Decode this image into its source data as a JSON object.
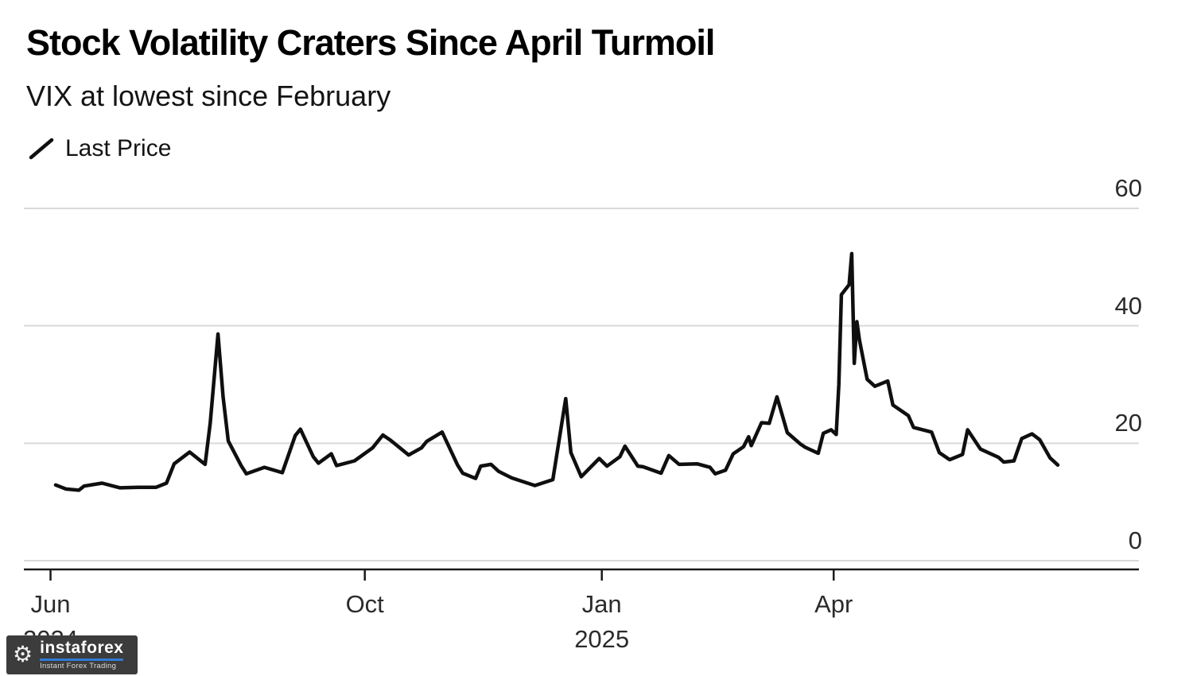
{
  "watermark": {
    "brand": "instaforex",
    "tagline": "Instant Forex Trading",
    "background_color": "#3c3c3c",
    "accent_color": "#2e7cd6"
  },
  "chart_data": {
    "type": "line",
    "title": "Stock Volatility Craters Since April Turmoil",
    "subtitle": "VIX at lowest since February",
    "xlabel": "",
    "ylabel": "",
    "ylim": [
      0,
      60
    ],
    "y_ticks": [
      0,
      20,
      40,
      60
    ],
    "grid": true,
    "grid_color": "#d9d9d9",
    "axis_color": "#1a1a1a",
    "legend_position": "top-left",
    "x_ticks": [
      {
        "date": "2024-06-01",
        "label": "Jun",
        "sublabel": "2024"
      },
      {
        "date": "2024-10-01",
        "label": "Oct",
        "sublabel": ""
      },
      {
        "date": "2025-01-01",
        "label": "Jan",
        "sublabel": "2025"
      },
      {
        "date": "2025-04-01",
        "label": "Apr",
        "sublabel": ""
      }
    ],
    "series": [
      {
        "name": "Last Price",
        "color": "#0f0f0f",
        "points": [
          [
            "2024-06-03",
            12.9
          ],
          [
            "2024-06-07",
            12.2
          ],
          [
            "2024-06-12",
            12.0
          ],
          [
            "2024-06-14",
            12.7
          ],
          [
            "2024-06-21",
            13.2
          ],
          [
            "2024-06-28",
            12.4
          ],
          [
            "2024-07-05",
            12.5
          ],
          [
            "2024-07-12",
            12.5
          ],
          [
            "2024-07-16",
            13.2
          ],
          [
            "2024-07-19",
            16.5
          ],
          [
            "2024-07-25",
            18.5
          ],
          [
            "2024-07-31",
            16.4
          ],
          [
            "2024-08-02",
            23.4
          ],
          [
            "2024-08-05",
            38.6
          ],
          [
            "2024-08-07",
            27.9
          ],
          [
            "2024-08-09",
            20.4
          ],
          [
            "2024-08-14",
            16.2
          ],
          [
            "2024-08-16",
            14.8
          ],
          [
            "2024-08-23",
            15.9
          ],
          [
            "2024-08-30",
            15.0
          ],
          [
            "2024-09-04",
            21.3
          ],
          [
            "2024-09-06",
            22.4
          ],
          [
            "2024-09-11",
            17.7
          ],
          [
            "2024-09-13",
            16.6
          ],
          [
            "2024-09-18",
            18.2
          ],
          [
            "2024-09-20",
            16.2
          ],
          [
            "2024-09-27",
            17.0
          ],
          [
            "2024-10-04",
            19.2
          ],
          [
            "2024-10-08",
            21.4
          ],
          [
            "2024-10-11",
            20.5
          ],
          [
            "2024-10-18",
            18.0
          ],
          [
            "2024-10-23",
            19.2
          ],
          [
            "2024-10-25",
            20.3
          ],
          [
            "2024-10-31",
            21.9
          ],
          [
            "2024-11-06",
            16.3
          ],
          [
            "2024-11-08",
            14.9
          ],
          [
            "2024-11-13",
            14.0
          ],
          [
            "2024-11-15",
            16.1
          ],
          [
            "2024-11-19",
            16.4
          ],
          [
            "2024-11-22",
            15.2
          ],
          [
            "2024-11-27",
            14.1
          ],
          [
            "2024-12-06",
            12.8
          ],
          [
            "2024-12-13",
            13.8
          ],
          [
            "2024-12-18",
            27.6
          ],
          [
            "2024-12-20",
            18.4
          ],
          [
            "2024-12-24",
            14.3
          ],
          [
            "2024-12-31",
            17.4
          ],
          [
            "2025-01-03",
            16.1
          ],
          [
            "2025-01-08",
            17.7
          ],
          [
            "2025-01-10",
            19.5
          ],
          [
            "2025-01-15",
            16.1
          ],
          [
            "2025-01-17",
            16.0
          ],
          [
            "2025-01-24",
            14.9
          ],
          [
            "2025-01-27",
            17.9
          ],
          [
            "2025-01-31",
            16.4
          ],
          [
            "2025-02-07",
            16.5
          ],
          [
            "2025-02-12",
            15.9
          ],
          [
            "2025-02-14",
            14.8
          ],
          [
            "2025-02-18",
            15.4
          ],
          [
            "2025-02-21",
            18.2
          ],
          [
            "2025-02-25",
            19.4
          ],
          [
            "2025-02-27",
            21.1
          ],
          [
            "2025-02-28",
            19.6
          ],
          [
            "2025-03-04",
            23.5
          ],
          [
            "2025-03-07",
            23.4
          ],
          [
            "2025-03-10",
            27.9
          ],
          [
            "2025-03-14",
            21.8
          ],
          [
            "2025-03-19",
            19.9
          ],
          [
            "2025-03-21",
            19.3
          ],
          [
            "2025-03-26",
            18.3
          ],
          [
            "2025-03-28",
            21.7
          ],
          [
            "2025-03-31",
            22.3
          ],
          [
            "2025-04-02",
            21.5
          ],
          [
            "2025-04-03",
            30.0
          ],
          [
            "2025-04-04",
            45.3
          ],
          [
            "2025-04-07",
            47.0
          ],
          [
            "2025-04-08",
            52.3
          ],
          [
            "2025-04-09",
            33.6
          ],
          [
            "2025-04-10",
            40.7
          ],
          [
            "2025-04-11",
            37.6
          ],
          [
            "2025-04-14",
            30.9
          ],
          [
            "2025-04-17",
            29.7
          ],
          [
            "2025-04-22",
            30.6
          ],
          [
            "2025-04-24",
            26.5
          ],
          [
            "2025-04-30",
            24.7
          ],
          [
            "2025-05-02",
            22.7
          ],
          [
            "2025-05-09",
            21.9
          ],
          [
            "2025-05-12",
            18.4
          ],
          [
            "2025-05-16",
            17.2
          ],
          [
            "2025-05-21",
            18.1
          ],
          [
            "2025-05-23",
            22.3
          ],
          [
            "2025-05-28",
            19.0
          ],
          [
            "2025-05-30",
            18.6
          ],
          [
            "2025-06-04",
            17.6
          ],
          [
            "2025-06-06",
            16.8
          ],
          [
            "2025-06-10",
            17.0
          ],
          [
            "2025-06-13",
            20.8
          ],
          [
            "2025-06-17",
            21.6
          ],
          [
            "2025-06-20",
            20.6
          ],
          [
            "2025-06-24",
            17.5
          ],
          [
            "2025-06-27",
            16.3
          ]
        ]
      }
    ]
  }
}
